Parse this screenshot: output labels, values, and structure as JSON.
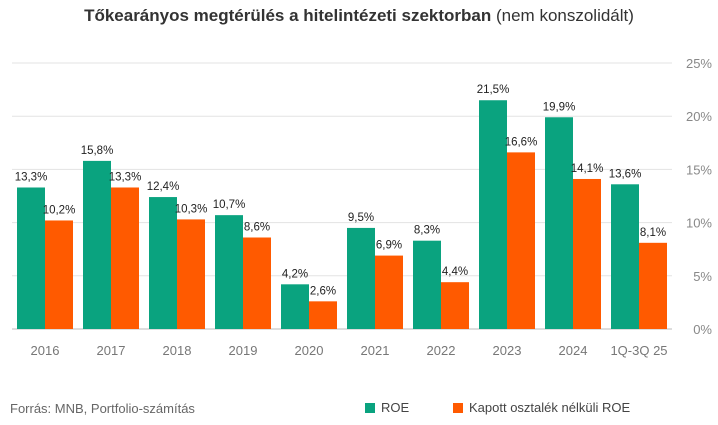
{
  "chart_data": {
    "type": "bar",
    "title": "Tőkearányos megtérülés a hitelintézeti szektorban",
    "subtitle": "(nem konszolidált)",
    "categories": [
      "2016",
      "2017",
      "2018",
      "2019",
      "2020",
      "2021",
      "2022",
      "2023",
      "2024",
      "1Q-3Q 25"
    ],
    "series": [
      {
        "name": "ROE",
        "color": "#0aa37f",
        "values": [
          13.3,
          15.8,
          12.4,
          10.7,
          4.2,
          9.5,
          8.3,
          21.5,
          19.9,
          13.6
        ],
        "labels": [
          "13,3%",
          "15,8%",
          "12,4%",
          "10,7%",
          "4,2%",
          "9,5%",
          "8,3%",
          "21,5%",
          "19,9%",
          "13,6%"
        ]
      },
      {
        "name": "Kapott osztalék nélküli ROE",
        "color": "#ff5a00",
        "values": [
          10.2,
          13.3,
          10.3,
          8.6,
          2.6,
          6.9,
          4.4,
          16.6,
          14.1,
          8.1
        ],
        "labels": [
          "10,2%",
          "13,3%",
          "10,3%",
          "8,6%",
          "2,6%",
          "6,9%",
          "4,4%",
          "16,6%",
          "14,1%",
          "8,1%"
        ]
      }
    ],
    "ylim": [
      0,
      25
    ],
    "yticks": [
      0,
      5,
      10,
      15,
      20,
      25
    ],
    "ytick_labels": [
      "0%",
      "5%",
      "10%",
      "15%",
      "20%",
      "25%"
    ],
    "y_axis_position": "right",
    "grid": true,
    "legend": "bottom"
  },
  "source": "Forrás: MNB, Portfolio-számítás"
}
